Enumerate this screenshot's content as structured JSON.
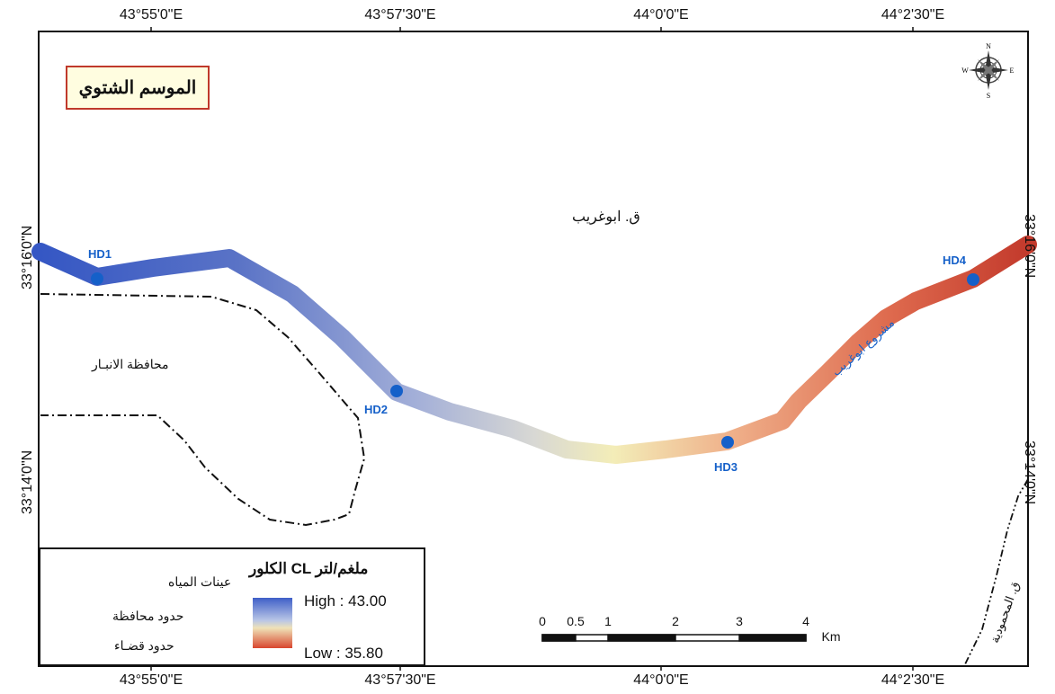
{
  "map": {
    "title": "الموسم الشتوي",
    "coords": {
      "top": [
        "43°55'0\"E",
        "43°57'30\"E",
        "44°0'0\"E",
        "44°2'30\"E"
      ],
      "bottom": [
        "43°55'0\"E",
        "43°57'30\"E",
        "44°0'0\"E",
        "44°2'30\"E"
      ],
      "left": [
        "33°16'0\"N",
        "33°14'0\"N"
      ],
      "right": [
        "33°16'0\"N",
        "33°14'0\"N"
      ]
    },
    "place_labels": {
      "abu_ghraib_district": "ق. ابوغريب",
      "anbar_province": "محافظة الانبـار",
      "abu_ghraib_project": "مشروع ابوغريب",
      "mahmudiya_district": "ق. المحمودية"
    },
    "sample_points": [
      "HD1",
      "HD2",
      "HD3",
      "HD4"
    ],
    "compass": {
      "n": "N",
      "s": "S",
      "e": "E",
      "w": "W"
    }
  },
  "legend": {
    "water_samples": "عينات المياه",
    "province_border": "حدود محافظة",
    "district_border": "حدود قضـاء",
    "title": "الكلور CL ملغم/لتر",
    "high": "High : 43.00",
    "low": "Low  : 35.80"
  },
  "scale_bar": {
    "labels": [
      "0",
      "0.5",
      "1",
      "2",
      "3",
      "4"
    ],
    "unit": "Km"
  },
  "colors": {
    "high": "#3f5fc8",
    "mid": "#f0e6b8",
    "low": "#c8402e",
    "points": "#1560c9",
    "title_border": "#c0392b"
  }
}
